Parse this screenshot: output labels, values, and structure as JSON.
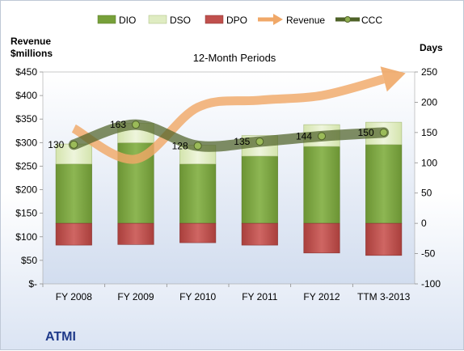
{
  "chart_data": {
    "type": "bar",
    "company": "ATMI",
    "subtitle": "12-Month Periods",
    "categories": [
      "FY 2008",
      "FY 2009",
      "FY 2010",
      "FY 2011",
      "FY 2012",
      "TTM 3-2013"
    ],
    "left_axis": {
      "title_line1": "Revenue",
      "title_line2": "$millions",
      "ylim": [
        0,
        450
      ],
      "ticks": [
        0,
        50,
        100,
        150,
        200,
        250,
        300,
        350,
        400,
        450
      ],
      "tick_labels": [
        "$-",
        "$50",
        "$100",
        "$150",
        "$200",
        "$250",
        "$300",
        "$350",
        "$400",
        "$450"
      ]
    },
    "right_axis": {
      "title": "Days",
      "ylim": [
        -100,
        250
      ],
      "ticks": [
        -100,
        -50,
        0,
        50,
        100,
        150,
        200,
        250
      ],
      "tick_labels": [
        "-100",
        "-50",
        "0",
        "50",
        "100",
        "150",
        "200",
        "250"
      ]
    },
    "series": [
      {
        "name": "DIO",
        "axis": "right",
        "type": "stacked-bar",
        "color": "#77a03a",
        "values": [
          98,
          133,
          98,
          111,
          127,
          130
        ]
      },
      {
        "name": "DSO",
        "axis": "right",
        "type": "stacked-bar",
        "color": "#dfecc2",
        "values": [
          33,
          32,
          31,
          34,
          36,
          37
        ]
      },
      {
        "name": "DPO",
        "axis": "right",
        "type": "negative-bar",
        "color": "#c0504d",
        "values": [
          -36,
          -35,
          -32,
          -36,
          -49,
          -53
        ]
      },
      {
        "name": "Revenue",
        "axis": "left",
        "type": "arrow-line",
        "color": "#f0a868",
        "values": [
          330,
          265,
          375,
          390,
          400,
          435
        ]
      },
      {
        "name": "CCC",
        "axis": "right",
        "type": "line",
        "color": "#4f6228",
        "values": [
          130,
          163,
          128,
          135,
          144,
          150
        ]
      }
    ],
    "data_labels": [
      "130",
      "163",
      "128",
      "135",
      "144",
      "150"
    ],
    "legend_position": "top",
    "grid": false
  }
}
